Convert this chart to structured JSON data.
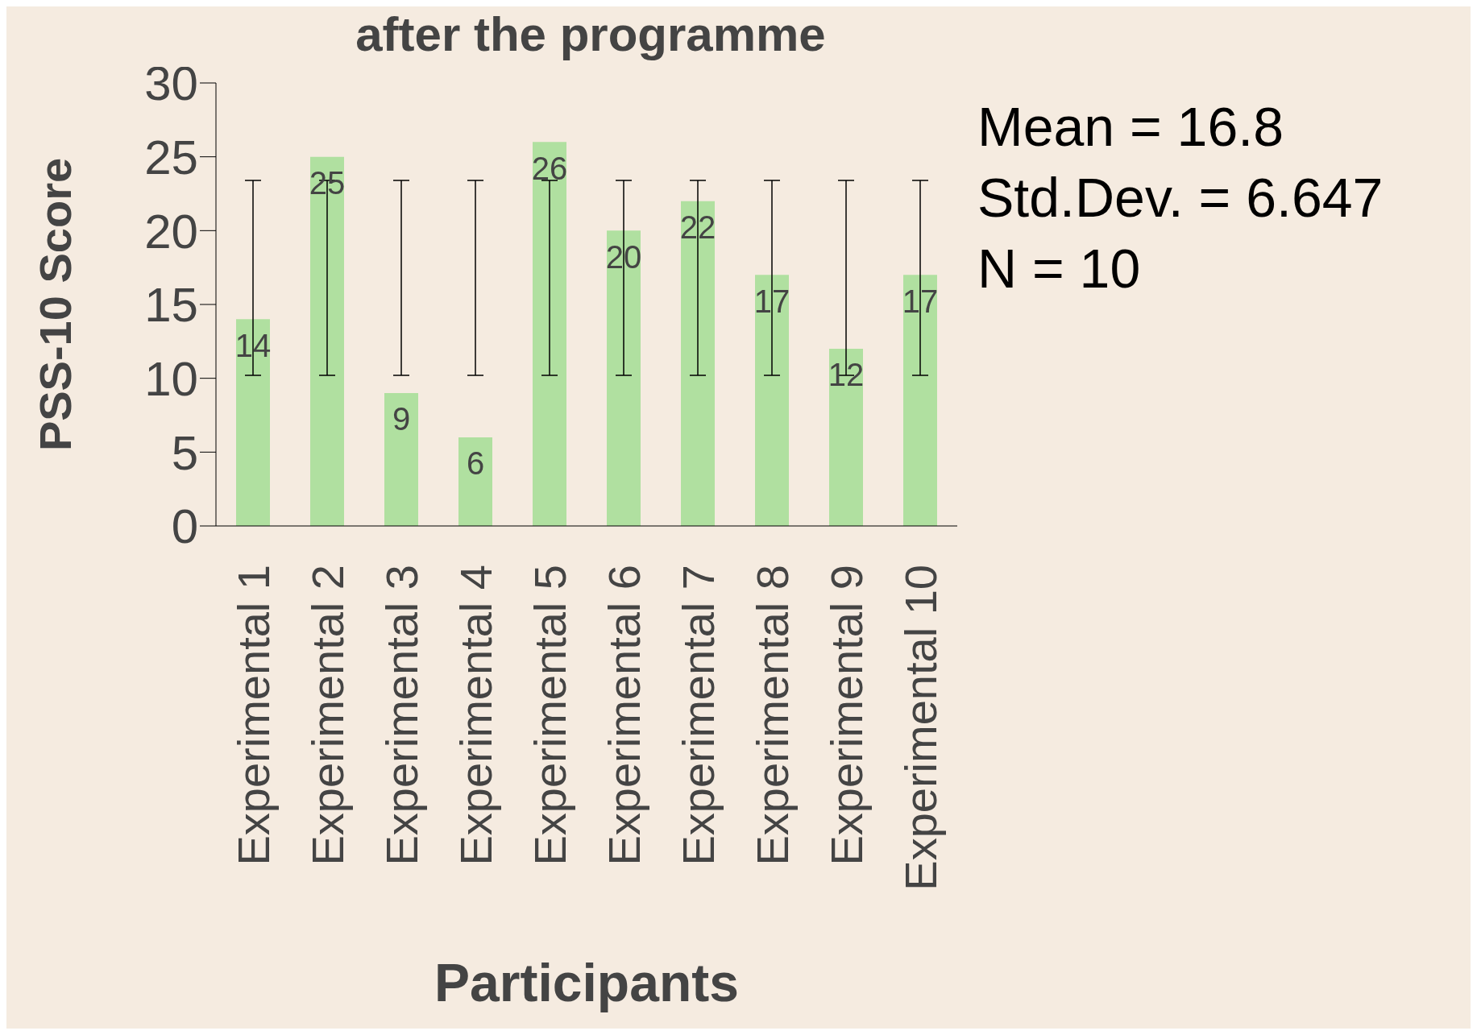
{
  "chart_data": {
    "type": "bar",
    "title": "after the programme",
    "xlabel": "Participants",
    "ylabel": "PSS-10 Score",
    "categories": [
      "Experimental 1",
      "Experimental 2",
      "Experimental 3",
      "Experimental 4",
      "Experimental 5",
      "Experimental 6",
      "Experimental 7",
      "Experimental 8",
      "Experimental 9",
      "Experimental 10"
    ],
    "values": [
      14,
      25,
      9,
      6,
      26,
      20,
      22,
      17,
      12,
      17
    ],
    "errors": [
      [
        10.2,
        23.4
      ],
      [
        10.2,
        23.4
      ],
      [
        10.2,
        23.4
      ],
      [
        10.2,
        23.4
      ],
      [
        10.2,
        23.4
      ],
      [
        10.2,
        23.4
      ],
      [
        10.2,
        23.4
      ],
      [
        10.2,
        23.4
      ],
      [
        10.2,
        23.4
      ],
      [
        10.2,
        23.4
      ]
    ],
    "color": "#b0e0a0",
    "ylim": [
      0,
      30
    ],
    "yticks": [
      0,
      5,
      10,
      15,
      20,
      25,
      30
    ],
    "grid": false,
    "legend": false,
    "data_labels": true,
    "annotations": [
      "Mean = 16.8",
      "Std.Dev. = 6.647",
      "N = 10"
    ]
  }
}
